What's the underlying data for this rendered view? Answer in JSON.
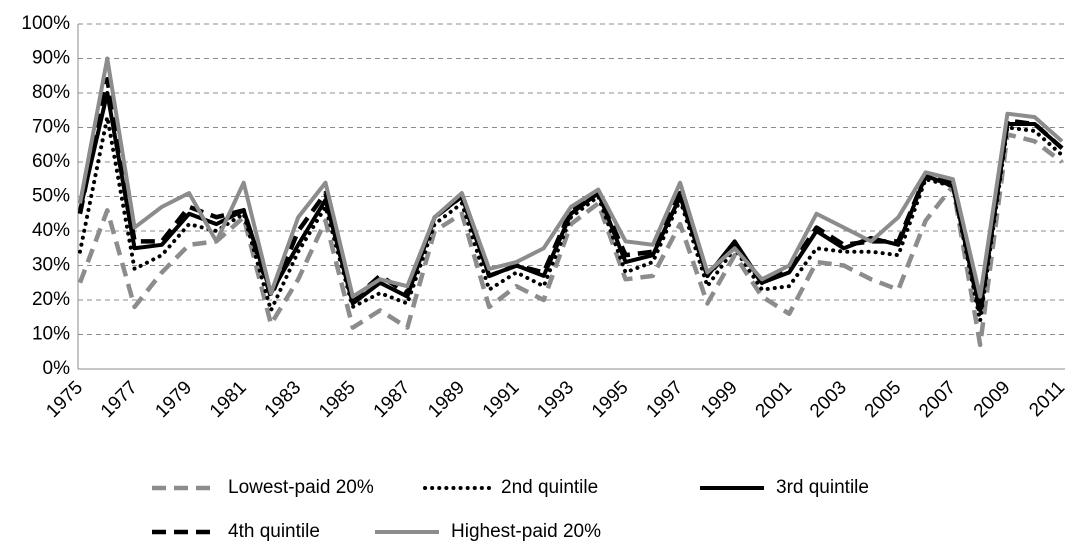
{
  "chart_data": {
    "type": "line",
    "categories": [
      "1975",
      null,
      "1977",
      null,
      "1979",
      null,
      "1981",
      null,
      "1983",
      null,
      "1985",
      null,
      "1987",
      null,
      "1989",
      null,
      "1991",
      null,
      "1993",
      null,
      "1995",
      null,
      "1997",
      null,
      "1999",
      null,
      "2001",
      null,
      "2003",
      null,
      "2005",
      null,
      "2007",
      null,
      "2009",
      null,
      "2011"
    ],
    "ylim": [
      0,
      100
    ],
    "yticks": [
      {
        "value": 0,
        "label": "0%"
      },
      {
        "value": 10,
        "label": "10%"
      },
      {
        "value": 20,
        "label": "20%"
      },
      {
        "value": 30,
        "label": "30%"
      },
      {
        "value": 40,
        "label": "40%"
      },
      {
        "value": 50,
        "label": "50%"
      },
      {
        "value": 60,
        "label": "60%"
      },
      {
        "value": 70,
        "label": "70%"
      },
      {
        "value": 80,
        "label": "80%"
      },
      {
        "value": 90,
        "label": "90%"
      },
      {
        "value": 100,
        "label": "100%"
      }
    ],
    "grid": true,
    "series": [
      {
        "name": "Lowest-paid 20%",
        "color": "#8c8c8c",
        "dash": "dashed",
        "values": [
          25,
          46,
          18,
          28,
          36,
          37,
          44,
          13,
          26,
          43,
          12,
          17,
          12,
          40,
          45,
          18,
          24,
          20,
          42,
          48,
          26,
          27,
          42,
          19,
          33,
          21,
          16,
          31,
          30,
          26,
          23,
          43,
          53,
          7,
          68,
          66,
          60
        ]
      },
      {
        "name": "2nd quintile",
        "color": "#000000",
        "dash": "dotted",
        "values": [
          34,
          73,
          29,
          33,
          42,
          40,
          45,
          17,
          34,
          47,
          18,
          22,
          19,
          42,
          48,
          23,
          28,
          24,
          44,
          50,
          28,
          31,
          49,
          24,
          35,
          23,
          24,
          35,
          34,
          34,
          33,
          55,
          53,
          14,
          70,
          69,
          62
        ]
      },
      {
        "name": "3rd quintile",
        "color": "#000000",
        "dash": "solid",
        "values": [
          46,
          80,
          35,
          36,
          45,
          42,
          46,
          22,
          36,
          49,
          19,
          25,
          21,
          44,
          50,
          27,
          30,
          27,
          45,
          51,
          31,
          33,
          50,
          27,
          37,
          25,
          28,
          40,
          35,
          38,
          36,
          56,
          53,
          17,
          71,
          71,
          64
        ]
      },
      {
        "name": "4th quintile",
        "color": "#000000",
        "dash": "dashed",
        "values": [
          45,
          84,
          37,
          37,
          47,
          44,
          46,
          21,
          40,
          51,
          20,
          27,
          22,
          44,
          50,
          27,
          30,
          28,
          46,
          51,
          33,
          34,
          51,
          27,
          36,
          25,
          29,
          41,
          36,
          37,
          37,
          56,
          54,
          16,
          72,
          71,
          64
        ]
      },
      {
        "name": "Highest-paid 20%",
        "color": "#8c8c8c",
        "dash": "solid",
        "values": [
          48,
          90,
          41,
          47,
          51,
          37,
          54,
          22,
          44,
          54,
          21,
          26,
          24,
          44,
          51,
          29,
          31,
          35,
          47,
          52,
          37,
          36,
          54,
          28,
          35,
          26,
          30,
          45,
          41,
          37,
          44,
          57,
          55,
          21,
          74,
          73,
          66
        ]
      }
    ]
  }
}
